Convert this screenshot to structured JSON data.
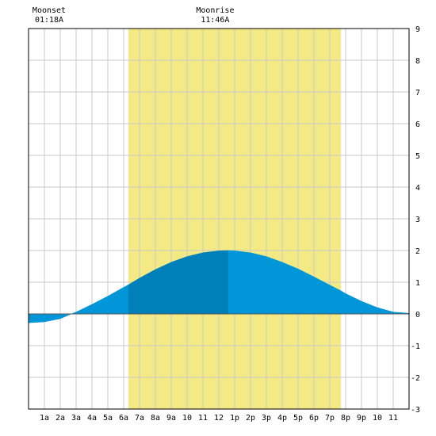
{
  "chart_data": {
    "type": "area",
    "title": "",
    "xlabel": "",
    "ylabel": "",
    "xlim": [
      0,
      24
    ],
    "ylim": [
      -3,
      9
    ],
    "x_tick_labels": [
      "1a",
      "2a",
      "3a",
      "4a",
      "5a",
      "6a",
      "7a",
      "8a",
      "9a",
      "10",
      "11",
      "12",
      "1p",
      "2p",
      "3p",
      "4p",
      "5p",
      "6p",
      "7p",
      "8p",
      "9p",
      "10",
      "11"
    ],
    "y_tick_labels": [
      "-3",
      "-2",
      "-1",
      "0",
      "1",
      "2",
      "3",
      "4",
      "5",
      "6",
      "7",
      "8",
      "9"
    ],
    "annotations": [
      {
        "name": "moonset",
        "label": "Moonset",
        "time": "01:18A",
        "x": 1.3
      },
      {
        "name": "moonrise",
        "label": "Moonrise",
        "time": "11:46A",
        "x": 11.77
      }
    ],
    "daylight": {
      "start": 6.3,
      "end": 19.7
    },
    "peak_x": 12.6,
    "series": [
      {
        "x": [
          0,
          1,
          2,
          2.7,
          3,
          4,
          5,
          6,
          6.3,
          7,
          8,
          9,
          10,
          11,
          12,
          12.6,
          13,
          14,
          15,
          16,
          17,
          18,
          19,
          19.7,
          20,
          21,
          22,
          23,
          24
        ],
        "y": [
          -0.28,
          -0.25,
          -0.15,
          0.0,
          0.06,
          0.3,
          0.56,
          0.84,
          0.92,
          1.13,
          1.4,
          1.63,
          1.81,
          1.93,
          1.99,
          2.0,
          1.99,
          1.93,
          1.81,
          1.63,
          1.42,
          1.17,
          0.91,
          0.73,
          0.64,
          0.4,
          0.2,
          0.06,
          0.02
        ]
      }
    ],
    "grid": true,
    "colors": {
      "daylight": "#f3ea85",
      "fill_before_peak_day": "#0080b8",
      "fill_other": "#0096d8",
      "grid": "#c8c8c8",
      "frame": "#000000",
      "background": "#ffffff"
    }
  }
}
